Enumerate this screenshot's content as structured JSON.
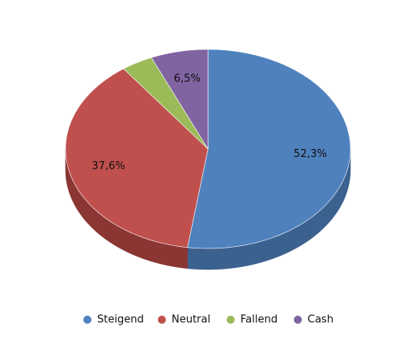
{
  "chart_data": {
    "type": "pie3d",
    "categories": [
      "Steigend",
      "Neutral",
      "Fallend",
      "Cash"
    ],
    "values": [
      52.3,
      37.6,
      3.6,
      6.5
    ],
    "value_labels": [
      "52,3%",
      "37,6%",
      null,
      "6,5%"
    ],
    "colors": [
      "#4f81bd",
      "#c0504d",
      "#9bbb59",
      "#8064a2"
    ],
    "side_colors": [
      "#3b618f",
      "#8a3633",
      "#6f8a3a",
      "#5d477a"
    ],
    "legend": "bottom"
  }
}
